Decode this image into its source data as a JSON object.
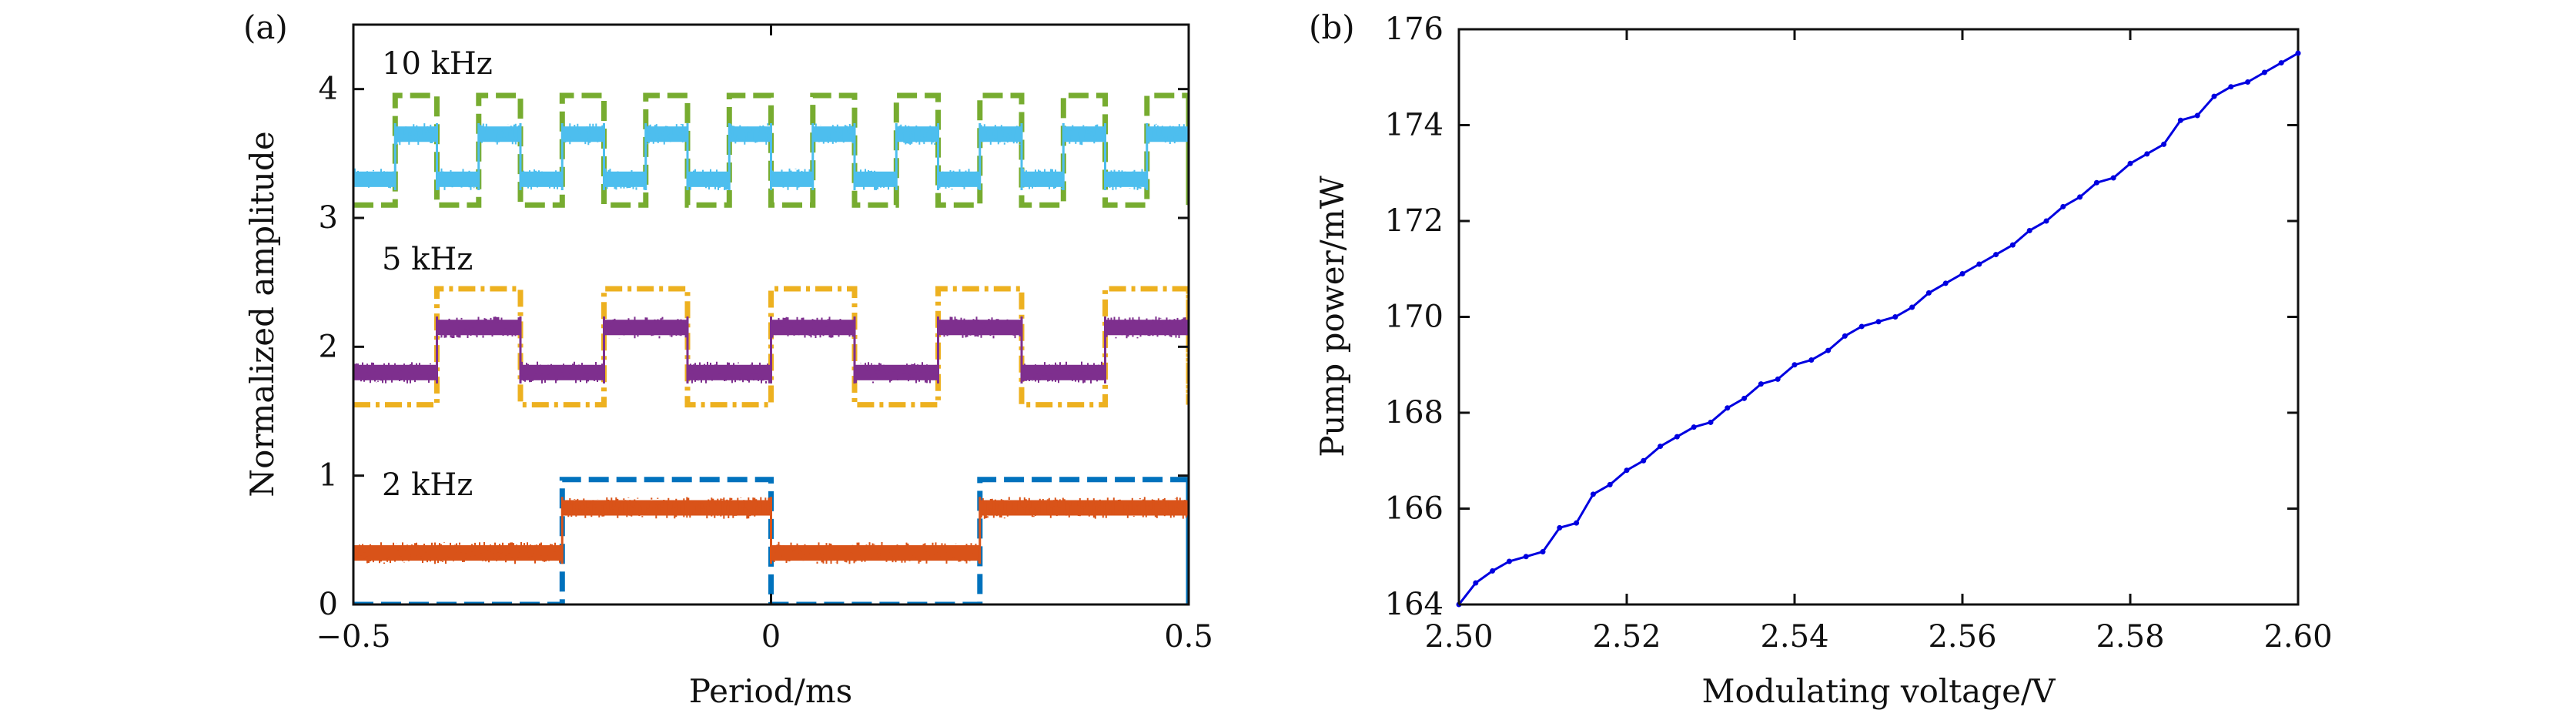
{
  "chart_data": [
    {
      "panel_label": "(a)",
      "type": "line",
      "xlabel": "Period/ms",
      "ylabel": "Normalized amplitude",
      "xlim": [
        -0.5,
        0.5
      ],
      "ylim": [
        0,
        4.5
      ],
      "x_ticks": [
        -0.5,
        0,
        0.5
      ],
      "x_tick_labels": [
        "−0.5",
        "0",
        "0.5"
      ],
      "y_ticks": [
        0,
        1,
        2,
        3,
        4
      ],
      "y_tick_labels": [
        "0",
        "1",
        "2",
        "3",
        "4"
      ],
      "annotations": [
        "10 kHz",
        "5 kHz",
        "2 kHz"
      ],
      "series": [
        {
          "name": "10 kHz reference",
          "style": "dashed",
          "color": "#77ac30",
          "period_ms": 0.1,
          "high_start": -0.45,
          "low": 3.1,
          "high": 3.95
        },
        {
          "name": "10 kHz response",
          "style": "noisy",
          "color": "#4dbeee",
          "period_ms": 0.1,
          "high_start": -0.45,
          "low": 3.3,
          "high": 3.65
        },
        {
          "name": "5 kHz reference",
          "style": "dashdot",
          "color": "#edb120",
          "period_ms": 0.2,
          "high_start": -0.4,
          "low": 1.55,
          "high": 2.45
        },
        {
          "name": "5 kHz response",
          "style": "noisy",
          "color": "#7e2f8e",
          "period_ms": 0.2,
          "high_start": -0.4,
          "low": 1.8,
          "high": 2.15
        },
        {
          "name": "2 kHz reference",
          "style": "dashed",
          "color": "#0072bd",
          "period_ms": 0.5,
          "high_start": -0.25,
          "low": 0.0,
          "high": 0.97
        },
        {
          "name": "2 kHz response",
          "style": "noisy",
          "color": "#d95319",
          "period_ms": 0.5,
          "high_start": -0.25,
          "low": 0.4,
          "high": 0.75
        }
      ]
    },
    {
      "panel_label": "(b)",
      "type": "line",
      "xlabel": "Modulating voltage/V",
      "ylabel": "Pump power/mW",
      "xlim": [
        2.5,
        2.6
      ],
      "ylim": [
        164,
        176
      ],
      "x_ticks": [
        2.5,
        2.52,
        2.54,
        2.56,
        2.58,
        2.6
      ],
      "x_tick_labels": [
        "2.50",
        "2.52",
        "2.54",
        "2.56",
        "2.58",
        "2.60"
      ],
      "y_ticks": [
        164,
        166,
        168,
        170,
        172,
        174,
        176
      ],
      "y_tick_labels": [
        "164",
        "166",
        "168",
        "170",
        "172",
        "174",
        "176"
      ],
      "color": "#0000e0",
      "x": [
        2.5,
        2.502,
        2.504,
        2.506,
        2.508,
        2.51,
        2.512,
        2.514,
        2.516,
        2.518,
        2.52,
        2.522,
        2.524,
        2.526,
        2.528,
        2.53,
        2.532,
        2.534,
        2.536,
        2.538,
        2.54,
        2.542,
        2.544,
        2.546,
        2.548,
        2.55,
        2.552,
        2.554,
        2.556,
        2.558,
        2.56,
        2.562,
        2.564,
        2.566,
        2.568,
        2.57,
        2.572,
        2.574,
        2.576,
        2.578,
        2.58,
        2.582,
        2.584,
        2.586,
        2.588,
        2.59,
        2.592,
        2.594,
        2.596,
        2.598,
        2.6
      ],
      "y": [
        164.0,
        164.45,
        164.7,
        164.9,
        165.0,
        165.1,
        165.6,
        165.7,
        166.3,
        166.5,
        166.8,
        167.0,
        167.3,
        167.5,
        167.7,
        167.8,
        168.1,
        168.3,
        168.6,
        168.7,
        169.0,
        169.1,
        169.3,
        169.6,
        169.8,
        169.9,
        170.0,
        170.2,
        170.5,
        170.7,
        170.9,
        171.1,
        171.3,
        171.5,
        171.8,
        172.0,
        172.3,
        172.5,
        172.8,
        172.9,
        173.2,
        173.4,
        173.6,
        174.1,
        174.2,
        174.6,
        174.8,
        174.9,
        175.1,
        175.3,
        175.5
      ]
    }
  ]
}
